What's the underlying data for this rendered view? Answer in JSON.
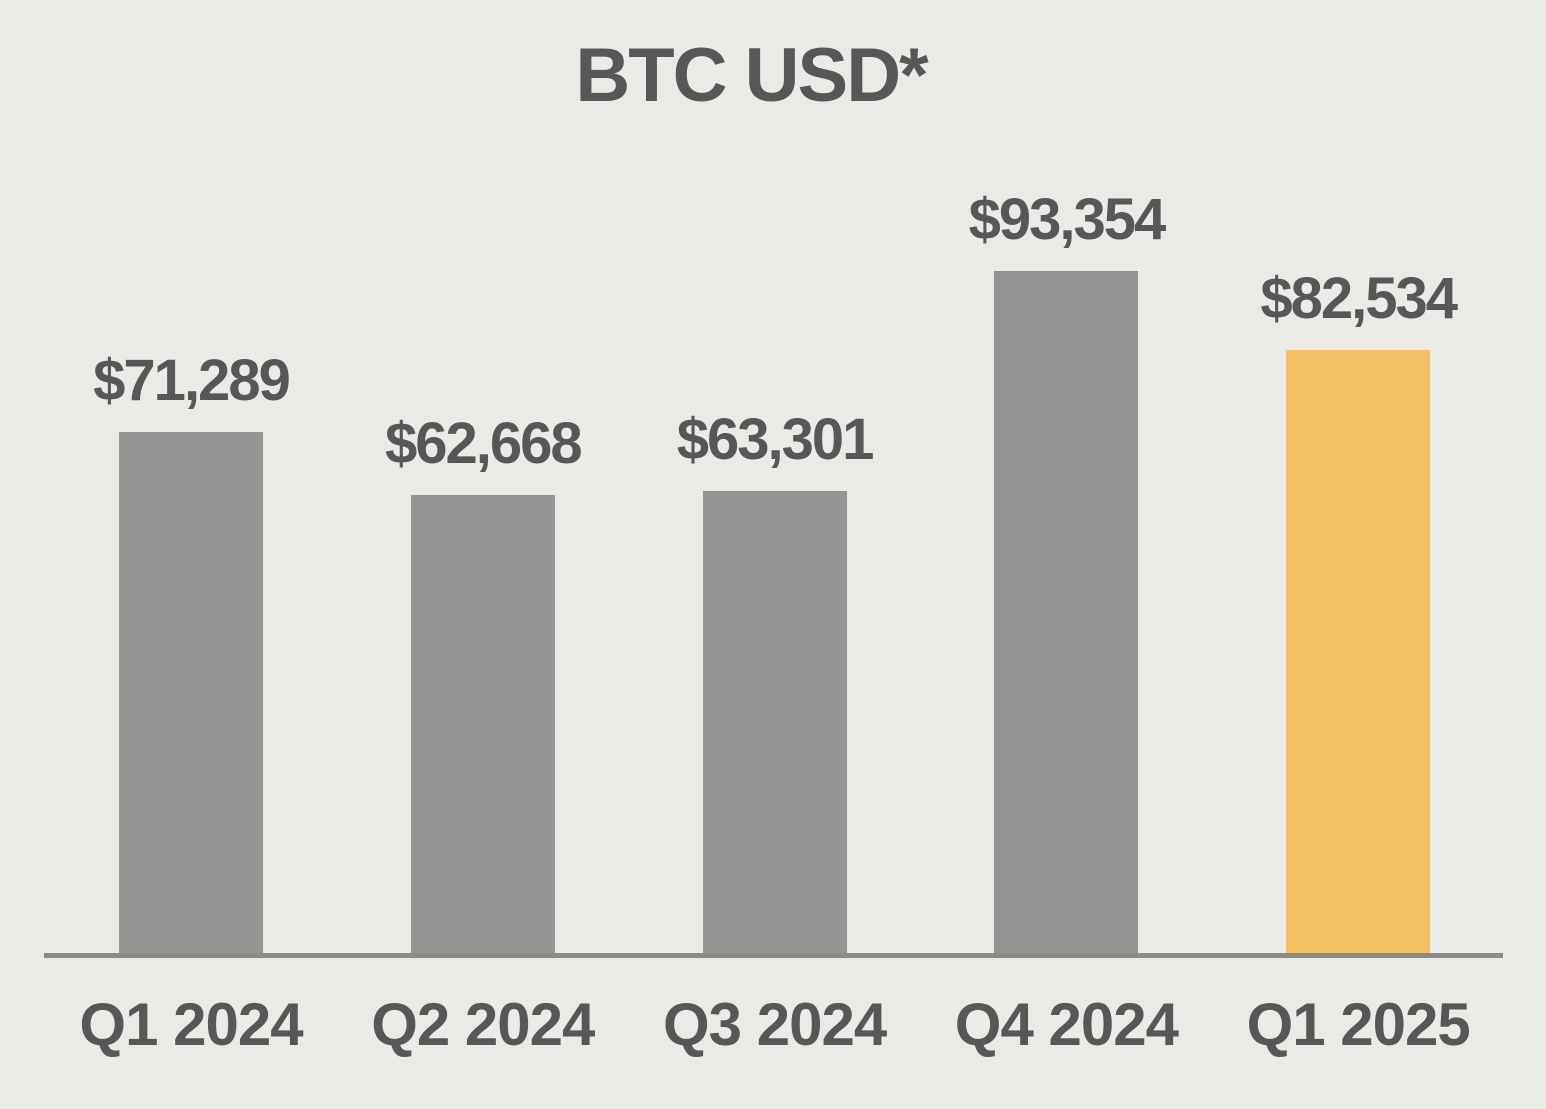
{
  "title": "BTC USD*",
  "chart_data": {
    "type": "bar",
    "title": "BTC USD*",
    "categories": [
      "Q1 2024",
      "Q2 2024",
      "Q3 2024",
      "Q4 2024",
      "Q1 2025"
    ],
    "values": [
      71289,
      62668,
      63301,
      93354,
      82534
    ],
    "value_labels": [
      "$71,289",
      "$62,668",
      "$63,301",
      "$93,354",
      "$82,534"
    ],
    "highlight_index": 4,
    "xlabel": "",
    "ylabel": "",
    "ylim": [
      0,
      100000
    ],
    "grid": false,
    "legend": false,
    "colors": {
      "background": "#ECEAE6",
      "bar_default": "#949392",
      "bar_highlight": "#F2C364",
      "text": "#585757",
      "axis_line": "#8B8B88"
    }
  }
}
